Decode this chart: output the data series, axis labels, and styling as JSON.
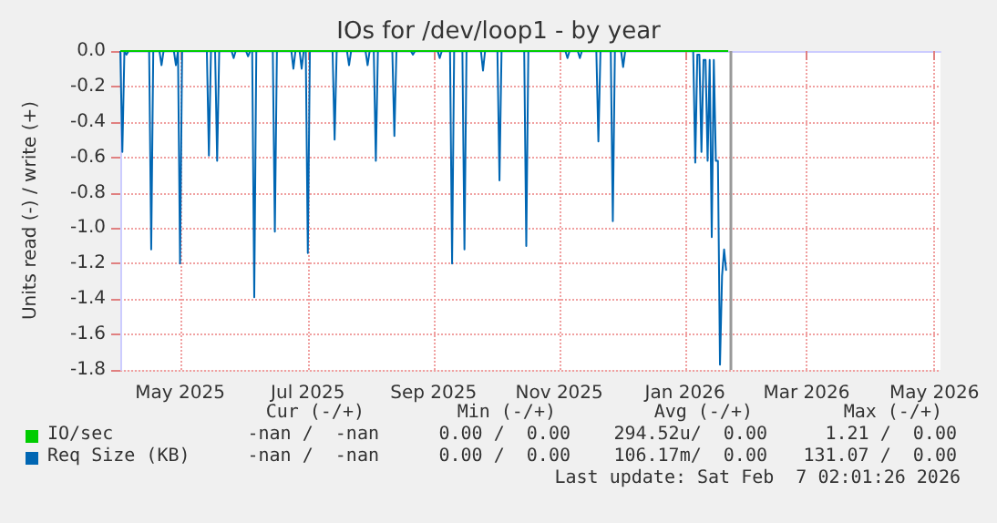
{
  "chart_data": {
    "type": "line",
    "title": "IOs for /dev/loop1 - by year",
    "ylabel": "Units read (-) / write (+)",
    "xlim": [
      "2025-04-17",
      "2026-05-20"
    ],
    "xticks": [
      {
        "value": "2025-05-16",
        "label": "May 2025"
      },
      {
        "value": "2025-07-17",
        "label": "Jul 2025"
      },
      {
        "value": "2025-09-16",
        "label": "Sep 2025"
      },
      {
        "value": "2025-11-16",
        "label": "Nov 2025"
      },
      {
        "value": "2026-01-16",
        "label": "Jan 2026"
      },
      {
        "value": "2026-03-16",
        "label": "Mar 2026"
      },
      {
        "value": "2026-05-17",
        "label": "May 2026"
      }
    ],
    "ylim": [
      -1.8,
      0
    ],
    "yticks": [
      {
        "value": -1.8,
        "label": "-1.8"
      },
      {
        "value": -1.6,
        "label": "-1.6"
      },
      {
        "value": -1.4,
        "label": "-1.4"
      },
      {
        "value": -1.2,
        "label": "-1.2"
      },
      {
        "value": -1,
        "label": "-1.0"
      },
      {
        "value": -0.8,
        "label": "-0.8"
      },
      {
        "value": -0.6,
        "label": "-0.6"
      },
      {
        "value": -0.4,
        "label": "-0.4"
      },
      {
        "value": -0.2,
        "label": "-0.2"
      },
      {
        "value": 0,
        "label": "0.0"
      }
    ],
    "grid": true,
    "legend": "bottom",
    "marker": "none",
    "line_style": "solid",
    "ref_lines": [
      {
        "axis": "x",
        "value": "2026-02-07",
        "color": "#999999"
      }
    ],
    "series": [
      {
        "name": "IO/sec",
        "color": "#00cc00",
        "x": [
          "2025-04-17",
          "2026-02-06"
        ],
        "values": [
          0,
          0
        ]
      },
      {
        "name": "Req Size (KB)",
        "color": "#0066b3",
        "x": [
          "2025-04-17",
          "2025-04-18",
          "2025-04-19",
          "2025-04-20",
          "2025-04-21",
          "2025-05-01",
          "2025-05-02",
          "2025-05-03",
          "2025-05-06",
          "2025-05-07",
          "2025-05-08",
          "2025-05-13",
          "2025-05-14",
          "2025-05-15",
          "2025-05-16",
          "2025-05-17",
          "2025-05-29",
          "2025-05-30",
          "2025-05-31",
          "2025-06-02",
          "2025-06-03",
          "2025-06-04",
          "2025-06-10",
          "2025-06-11",
          "2025-06-12",
          "2025-06-17",
          "2025-06-18",
          "2025-06-19",
          "2025-06-20",
          "2025-06-21",
          "2025-06-22",
          "2025-06-30",
          "2025-07-01",
          "2025-07-02",
          "2025-07-09",
          "2025-07-10",
          "2025-07-11",
          "2025-07-13",
          "2025-07-14",
          "2025-07-15",
          "2025-07-16",
          "2025-07-17",
          "2025-07-18",
          "2025-07-29",
          "2025-07-30",
          "2025-07-31",
          "2025-08-05",
          "2025-08-06",
          "2025-08-07",
          "2025-08-14",
          "2025-08-15",
          "2025-08-16",
          "2025-08-18",
          "2025-08-19",
          "2025-08-20",
          "2025-08-27",
          "2025-08-28",
          "2025-08-29",
          "2025-09-05",
          "2025-09-06",
          "2025-09-07",
          "2025-09-18",
          "2025-09-19",
          "2025-09-20",
          "2025-09-24",
          "2025-09-25",
          "2025-09-26",
          "2025-09-30",
          "2025-10-01",
          "2025-10-02",
          "2025-10-09",
          "2025-10-10",
          "2025-10-11",
          "2025-10-17",
          "2025-10-18",
          "2025-10-19",
          "2025-10-30",
          "2025-10-31",
          "2025-11-01",
          "2025-11-19",
          "2025-11-20",
          "2025-11-21",
          "2025-11-25",
          "2025-11-26",
          "2025-11-27",
          "2025-12-04",
          "2025-12-05",
          "2025-12-06",
          "2025-12-11",
          "2025-12-12",
          "2025-12-13",
          "2025-12-16",
          "2025-12-17",
          "2025-12-18",
          "2026-01-20",
          "2026-01-21",
          "2026-01-22",
          "2026-01-23",
          "2026-01-24",
          "2026-01-25",
          "2026-01-26",
          "2026-01-27",
          "2026-01-28",
          "2026-01-29",
          "2026-01-30",
          "2026-01-31",
          "2026-02-01",
          "2026-02-02",
          "2026-02-03",
          "2026-02-04",
          "2026-02-05"
        ],
        "values": [
          0,
          -0.57,
          0,
          -0.02,
          0,
          0,
          -1.12,
          0,
          0,
          -0.08,
          0,
          0,
          -0.08,
          0,
          -1.2,
          0,
          0,
          -0.59,
          0,
          0,
          -0.62,
          0,
          0,
          -0.04,
          0,
          0,
          -0.03,
          0,
          0,
          -1.39,
          0,
          0,
          -1.02,
          0,
          0,
          -0.1,
          0,
          0,
          -0.1,
          0,
          0,
          -1.14,
          0,
          0,
          -0.5,
          0,
          0,
          -0.08,
          0,
          0,
          -0.08,
          0,
          0,
          -0.62,
          0,
          0,
          -0.48,
          0,
          0,
          -0.02,
          0,
          0,
          -0.04,
          0,
          0,
          -1.2,
          0,
          0,
          -1.12,
          0,
          0,
          -0.11,
          0,
          0,
          -0.73,
          0,
          0,
          -1.1,
          0,
          0,
          -0.04,
          0,
          0,
          -0.04,
          0,
          0,
          -0.51,
          0,
          0,
          -0.96,
          0,
          0,
          -0.09,
          0,
          0,
          -0.63,
          -0.02,
          -0.02,
          -0.57,
          -0.05,
          -0.05,
          -0.62,
          -0.05,
          -1.05,
          -0.05,
          -0.62,
          -0.62,
          -1.77,
          -1.27,
          -1.12,
          -1.24
        ]
      }
    ],
    "annotations": [
      "Cur (-/+)",
      "Min (-/+)",
      "Avg (-/+)",
      "Max (-/+)",
      "-nan /  -nan",
      "0.00 /  0.00",
      "294.52u/  0.00",
      "1.21 /  0.00",
      "-nan /  -nan",
      "0.00 /  0.00",
      "106.17m/  0.00",
      "131.07 /  0.00",
      "Last update: Sat Feb  7 02:01:26 2026"
    ]
  }
}
